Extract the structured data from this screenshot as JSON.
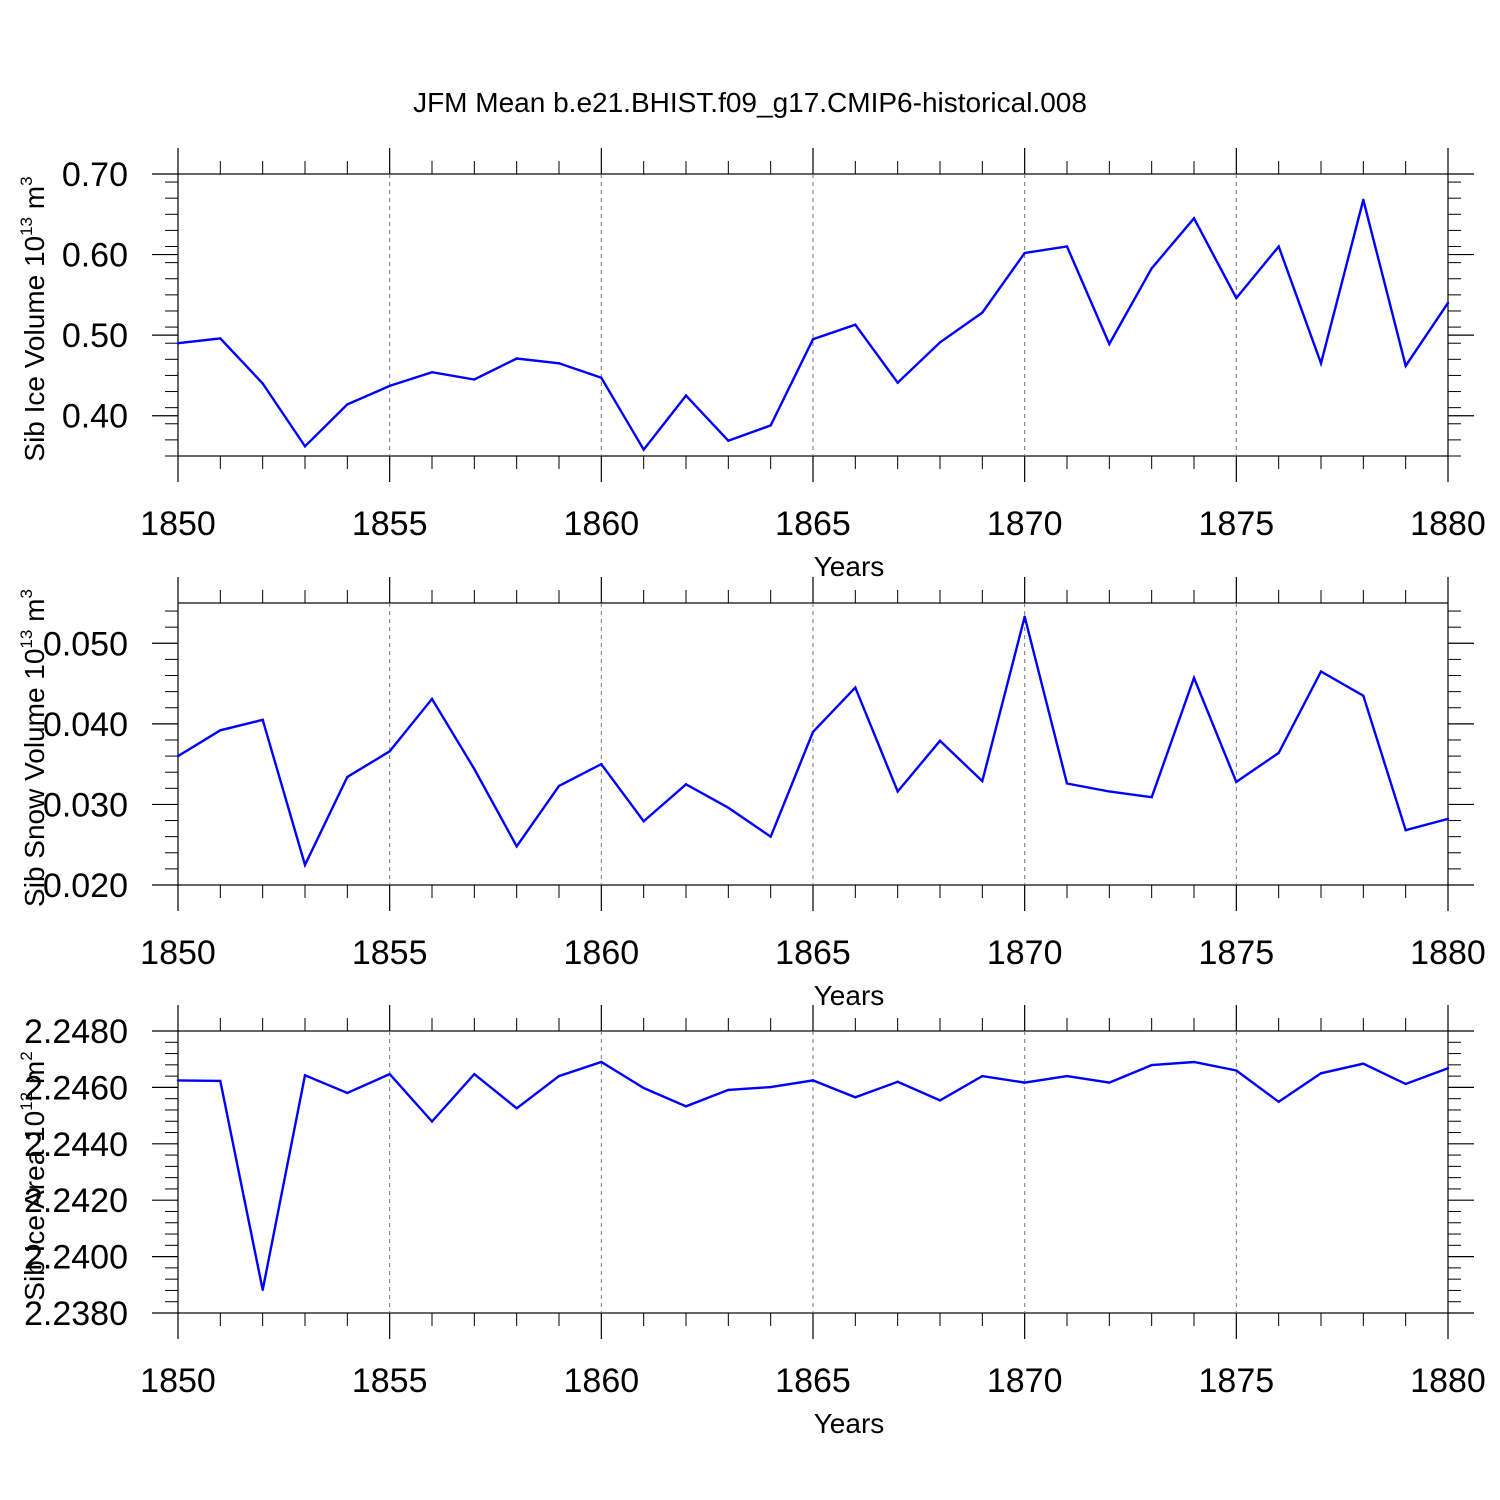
{
  "title": "JFM Mean b.e21.BHIST.f09_g17.CMIP6-historical.008",
  "chart_data": [
    {
      "type": "line",
      "ylabel_prefix": "Sib Ice Volume 10",
      "ylabel_sup": "13",
      "ylabel_unit": "m",
      "ylabel_unit_sup": "3",
      "xlabel": "Years",
      "xlim": [
        1850,
        1880
      ],
      "ylim": [
        0.35,
        0.7
      ],
      "xticks": [
        "1850",
        "1855",
        "1860",
        "1865",
        "1870",
        "1875",
        "1880"
      ],
      "yticks": [
        "0.40",
        "0.50",
        "0.60",
        "0.70"
      ],
      "line_color": "#0000ff",
      "series": [
        {
          "name": "Sib Ice Volume",
          "x": [
            1850,
            1851,
            1852,
            1853,
            1854,
            1855,
            1856,
            1857,
            1858,
            1859,
            1860,
            1861,
            1862,
            1863,
            1864,
            1865,
            1866,
            1867,
            1868,
            1869,
            1870,
            1871,
            1872,
            1873,
            1874,
            1875,
            1876,
            1877,
            1878,
            1879,
            1880
          ],
          "values": [
            0.49,
            0.496,
            0.44,
            0.362,
            0.414,
            0.437,
            0.454,
            0.445,
            0.471,
            0.465,
            0.447,
            0.358,
            0.425,
            0.369,
            0.388,
            0.495,
            0.513,
            0.441,
            0.491,
            0.528,
            0.602,
            0.61,
            0.489,
            0.583,
            0.645,
            0.546,
            0.61,
            0.465,
            0.668,
            0.462,
            0.54
          ]
        }
      ]
    },
    {
      "type": "line",
      "ylabel_prefix": "Sib Snow Volume 10",
      "ylabel_sup": "13",
      "ylabel_unit": "m",
      "ylabel_unit_sup": "3",
      "xlabel": "Years",
      "xlim": [
        1850,
        1880
      ],
      "ylim": [
        0.02,
        0.055
      ],
      "xticks": [
        "1850",
        "1855",
        "1860",
        "1865",
        "1870",
        "1875",
        "1880"
      ],
      "yticks": [
        "0.020",
        "0.030",
        "0.040",
        "0.050"
      ],
      "line_color": "#0000ff",
      "series": [
        {
          "name": "Sib Snow Volume",
          "x": [
            1850,
            1851,
            1852,
            1853,
            1854,
            1855,
            1856,
            1857,
            1858,
            1859,
            1860,
            1861,
            1862,
            1863,
            1864,
            1865,
            1866,
            1867,
            1868,
            1869,
            1870,
            1871,
            1872,
            1873,
            1874,
            1875,
            1876,
            1877,
            1878,
            1879,
            1880
          ],
          "values": [
            0.036,
            0.0392,
            0.0405,
            0.0225,
            0.0334,
            0.0366,
            0.0431,
            0.0344,
            0.0248,
            0.0323,
            0.035,
            0.0279,
            0.0325,
            0.0296,
            0.026,
            0.039,
            0.0445,
            0.0316,
            0.0379,
            0.0329,
            0.0533,
            0.0326,
            0.0316,
            0.0309,
            0.0457,
            0.0328,
            0.0364,
            0.0465,
            0.0435,
            0.0268,
            0.0282
          ]
        }
      ]
    },
    {
      "type": "line",
      "ylabel_prefix": "Sib Ice Area 10",
      "ylabel_sup": "12",
      "ylabel_unit": "m",
      "ylabel_unit_sup": "2",
      "xlabel": "Years",
      "xlim": [
        1850,
        1880
      ],
      "ylim": [
        2.238,
        2.248
      ],
      "xticks": [
        "1850",
        "1855",
        "1860",
        "1865",
        "1870",
        "1875",
        "1880"
      ],
      "yticks": [
        "2.2380",
        "2.2400",
        "2.2420",
        "2.2440",
        "2.2460",
        "2.2480"
      ],
      "line_color": "#0000ff",
      "series": [
        {
          "name": "Sib Ice Area",
          "x": [
            1850,
            1851,
            1852,
            1853,
            1854,
            1855,
            1856,
            1857,
            1858,
            1859,
            1860,
            1861,
            1862,
            1863,
            1864,
            1865,
            1866,
            1867,
            1868,
            1869,
            1870,
            1871,
            1872,
            1873,
            1874,
            1875,
            1876,
            1877,
            1878,
            1879,
            1880
          ],
          "values": [
            2.24625,
            2.24623,
            2.23882,
            2.24643,
            2.2458,
            2.24647,
            2.24479,
            2.24647,
            2.24526,
            2.2464,
            2.2469,
            2.24598,
            2.24533,
            2.24591,
            2.24601,
            2.24625,
            2.24565,
            2.2462,
            2.24554,
            2.2464,
            2.24617,
            2.2464,
            2.24617,
            2.24679,
            2.2469,
            2.2466,
            2.24549,
            2.2465,
            2.24684,
            2.24612,
            2.24668
          ]
        }
      ]
    }
  ]
}
